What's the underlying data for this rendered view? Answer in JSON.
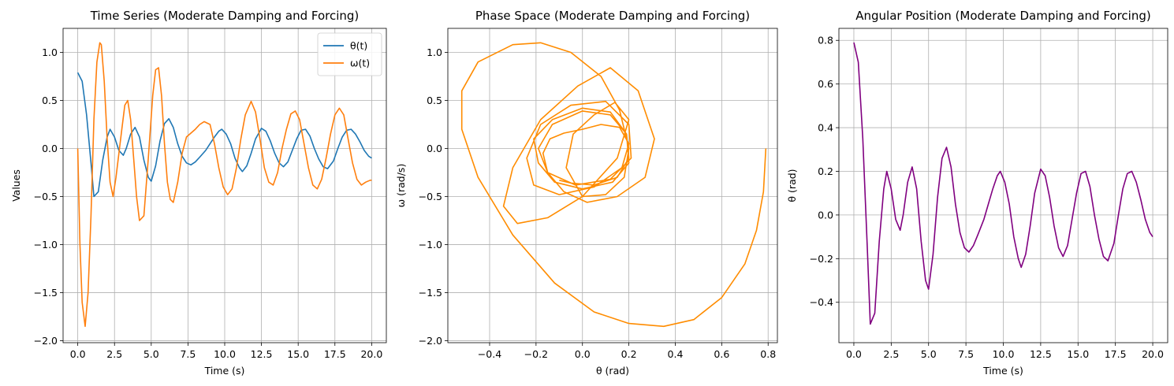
{
  "chart_data": [
    {
      "type": "line",
      "title": "Time Series (Moderate Damping and Forcing)",
      "xlabel": "Time (s)",
      "ylabel": "Values",
      "xlim": [
        -1,
        21
      ],
      "ylim": [
        -2.02,
        1.25
      ],
      "xticks": [
        0,
        2.5,
        5,
        7.5,
        10,
        12.5,
        15,
        17.5,
        20
      ],
      "xtick_labels": [
        "0.0",
        "2.5",
        "5.0",
        "7.5",
        "10.0",
        "12.5",
        "15.0",
        "17.5",
        "20.0"
      ],
      "yticks": [
        -2,
        -1.5,
        -1,
        -0.5,
        0,
        0.5,
        1
      ],
      "ytick_labels": [
        "−2.0",
        "−1.5",
        "−1.0",
        "−0.5",
        "0.0",
        "0.5",
        "1.0"
      ],
      "grid": true,
      "legend": "top-right",
      "series": [
        {
          "name": "θ(t)",
          "color": "#1f77b4",
          "x": [
            0,
            0.3,
            0.6,
            0.9,
            1.1,
            1.4,
            1.7,
            2.0,
            2.2,
            2.5,
            2.8,
            3.1,
            3.3,
            3.6,
            3.9,
            4.2,
            4.5,
            4.8,
            5.0,
            5.3,
            5.6,
            5.9,
            6.2,
            6.5,
            6.8,
            7.1,
            7.4,
            7.7,
            8.0,
            8.3,
            8.7,
            9.0,
            9.3,
            9.6,
            9.8,
            10.1,
            10.4,
            10.7,
            11.0,
            11.2,
            11.5,
            11.8,
            12.1,
            12.5,
            12.8,
            13.1,
            13.4,
            13.7,
            14.0,
            14.3,
            14.6,
            14.9,
            15.2,
            15.5,
            15.8,
            16.1,
            16.4,
            16.7,
            17.0,
            17.4,
            17.7,
            18.0,
            18.3,
            18.6,
            18.9,
            19.2,
            19.5,
            19.8,
            20.0
          ],
          "y": [
            0.79,
            0.7,
            0.35,
            -0.15,
            -0.5,
            -0.45,
            -0.12,
            0.12,
            0.2,
            0.12,
            -0.02,
            -0.07,
            0.0,
            0.15,
            0.22,
            0.12,
            -0.12,
            -0.3,
            -0.34,
            -0.18,
            0.08,
            0.26,
            0.31,
            0.22,
            0.05,
            -0.08,
            -0.15,
            -0.17,
            -0.14,
            -0.09,
            -0.02,
            0.05,
            0.12,
            0.18,
            0.2,
            0.15,
            0.05,
            -0.1,
            -0.2,
            -0.24,
            -0.18,
            -0.05,
            0.1,
            0.21,
            0.18,
            0.08,
            -0.05,
            -0.15,
            -0.19,
            -0.14,
            -0.02,
            0.1,
            0.19,
            0.2,
            0.13,
            0.0,
            -0.11,
            -0.19,
            -0.21,
            -0.13,
            0.0,
            0.12,
            0.19,
            0.2,
            0.15,
            0.07,
            -0.02,
            -0.08,
            -0.1
          ]
        },
        {
          "name": "ω(t)",
          "color": "#ff7f0e",
          "x": [
            0,
            0.15,
            0.3,
            0.5,
            0.7,
            0.9,
            1.1,
            1.3,
            1.5,
            1.6,
            1.8,
            2.0,
            2.2,
            2.4,
            2.6,
            2.8,
            3.0,
            3.2,
            3.4,
            3.6,
            3.8,
            4.0,
            4.2,
            4.5,
            4.8,
            5.1,
            5.3,
            5.5,
            5.7,
            5.9,
            6.1,
            6.3,
            6.5,
            6.8,
            7.1,
            7.4,
            7.7,
            8.0,
            8.3,
            8.6,
            9.0,
            9.3,
            9.6,
            9.9,
            10.2,
            10.5,
            10.8,
            11.1,
            11.4,
            11.8,
            12.1,
            12.4,
            12.7,
            13.0,
            13.3,
            13.6,
            13.9,
            14.2,
            14.5,
            14.8,
            15.1,
            15.4,
            15.7,
            16.0,
            16.3,
            16.6,
            16.9,
            17.2,
            17.5,
            17.8,
            18.1,
            18.4,
            18.7,
            19.0,
            19.3,
            19.6,
            19.9,
            20.0
          ],
          "y": [
            0.0,
            -1.0,
            -1.6,
            -1.85,
            -1.5,
            -0.7,
            0.3,
            0.9,
            1.1,
            1.08,
            0.7,
            0.1,
            -0.35,
            -0.5,
            -0.3,
            -0.05,
            0.2,
            0.45,
            0.5,
            0.3,
            -0.1,
            -0.5,
            -0.75,
            -0.7,
            -0.1,
            0.55,
            0.82,
            0.84,
            0.55,
            0.05,
            -0.35,
            -0.53,
            -0.56,
            -0.35,
            -0.05,
            0.12,
            0.16,
            0.2,
            0.25,
            0.28,
            0.25,
            0.05,
            -0.2,
            -0.4,
            -0.48,
            -0.42,
            -0.2,
            0.1,
            0.35,
            0.49,
            0.38,
            0.1,
            -0.2,
            -0.35,
            -0.38,
            -0.25,
            0.0,
            0.2,
            0.36,
            0.39,
            0.3,
            0.05,
            -0.2,
            -0.38,
            -0.42,
            -0.32,
            -0.1,
            0.15,
            0.35,
            0.42,
            0.35,
            0.1,
            -0.15,
            -0.32,
            -0.38,
            -0.35,
            -0.33,
            -0.33
          ]
        }
      ]
    },
    {
      "type": "line",
      "title": "Phase Space (Moderate Damping and Forcing)",
      "xlabel": "θ (rad)",
      "ylabel": "ω (rad/s)",
      "xlim": [
        -0.58,
        0.84
      ],
      "ylim": [
        -2.02,
        1.25
      ],
      "xticks": [
        -0.4,
        -0.2,
        0,
        0.2,
        0.4,
        0.6,
        0.8
      ],
      "xtick_labels": [
        "−0.4",
        "−0.2",
        "0.0",
        "0.2",
        "0.4",
        "0.6",
        "0.8"
      ],
      "yticks": [
        -2,
        -1.5,
        -1,
        -0.5,
        0,
        0.5,
        1
      ],
      "ytick_labels": [
        "−2.0",
        "−1.5",
        "−1.0",
        "−0.5",
        "0.0",
        "0.5",
        "1.0"
      ],
      "grid": true,
      "series": [
        {
          "color": "#ff8c00",
          "x": [
            0.79,
            0.78,
            0.75,
            0.7,
            0.6,
            0.48,
            0.35,
            0.2,
            0.05,
            -0.12,
            -0.3,
            -0.45,
            -0.52,
            -0.52,
            -0.45,
            -0.3,
            -0.18,
            -0.05,
            0.08,
            0.16,
            0.2,
            0.18,
            0.1,
            0.0,
            -0.07,
            -0.04,
            0.05,
            0.14,
            0.2,
            0.15,
            0.0,
            -0.15,
            -0.28,
            -0.34,
            -0.3,
            -0.18,
            -0.02,
            0.12,
            0.24,
            0.31,
            0.27,
            0.15,
            0.02,
            -0.08,
            -0.15,
            -0.17,
            -0.14,
            -0.08,
            0.0,
            0.08,
            0.16,
            0.2,
            0.17,
            0.05,
            -0.1,
            -0.21,
            -0.24,
            -0.18,
            -0.05,
            0.1,
            0.2,
            0.21,
            0.12,
            -0.03,
            -0.15,
            -0.19,
            -0.13,
            0.0,
            0.12,
            0.19,
            0.2,
            0.13,
            0.0,
            -0.12,
            -0.19,
            -0.21,
            -0.13,
            0.0,
            0.12,
            0.19,
            0.2,
            0.15,
            0.05,
            -0.05,
            -0.1
          ],
          "y": [
            0.0,
            -0.45,
            -0.85,
            -1.2,
            -1.55,
            -1.78,
            -1.85,
            -1.82,
            -1.7,
            -1.4,
            -0.9,
            -0.3,
            0.2,
            0.6,
            0.9,
            1.08,
            1.1,
            1.0,
            0.75,
            0.4,
            0.0,
            -0.3,
            -0.48,
            -0.5,
            -0.2,
            0.15,
            0.35,
            0.48,
            0.3,
            -0.1,
            -0.5,
            -0.72,
            -0.78,
            -0.6,
            -0.2,
            0.3,
            0.65,
            0.84,
            0.6,
            0.1,
            -0.3,
            -0.5,
            -0.56,
            -0.45,
            -0.25,
            -0.05,
            0.1,
            0.16,
            0.2,
            0.25,
            0.22,
            0.05,
            -0.2,
            -0.4,
            -0.48,
            -0.38,
            -0.1,
            0.25,
            0.45,
            0.49,
            0.25,
            -0.1,
            -0.32,
            -0.38,
            -0.25,
            0.0,
            0.25,
            0.39,
            0.35,
            0.15,
            -0.15,
            -0.35,
            -0.42,
            -0.35,
            -0.15,
            0.1,
            0.3,
            0.42,
            0.38,
            0.15,
            -0.1,
            -0.3,
            -0.38,
            -0.36,
            -0.33
          ]
        }
      ]
    },
    {
      "type": "line",
      "title": "Angular Position (Moderate Damping and Forcing)",
      "xlabel": "Time (s)",
      "ylabel": "θ (rad)",
      "xlim": [
        -1,
        21
      ],
      "ylim": [
        -0.585,
        0.855
      ],
      "xticks": [
        0,
        2.5,
        5,
        7.5,
        10,
        12.5,
        15,
        17.5,
        20
      ],
      "xtick_labels": [
        "0.0",
        "2.5",
        "5.0",
        "7.5",
        "10.0",
        "12.5",
        "15.0",
        "17.5",
        "20.0"
      ],
      "yticks": [
        -0.4,
        -0.2,
        0,
        0.2,
        0.4,
        0.6,
        0.8
      ],
      "ytick_labels": [
        "−0.4",
        "−0.2",
        "0.0",
        "0.2",
        "0.4",
        "0.6",
        "0.8"
      ],
      "grid": true,
      "series": [
        {
          "color": "#800080",
          "x": [
            0,
            0.3,
            0.6,
            0.9,
            1.1,
            1.4,
            1.7,
            2.0,
            2.2,
            2.5,
            2.8,
            3.1,
            3.3,
            3.6,
            3.9,
            4.2,
            4.5,
            4.8,
            5.0,
            5.3,
            5.6,
            5.9,
            6.2,
            6.5,
            6.8,
            7.1,
            7.4,
            7.7,
            8.0,
            8.3,
            8.7,
            9.0,
            9.3,
            9.6,
            9.8,
            10.1,
            10.4,
            10.7,
            11.0,
            11.2,
            11.5,
            11.8,
            12.1,
            12.5,
            12.8,
            13.1,
            13.4,
            13.7,
            14.0,
            14.3,
            14.6,
            14.9,
            15.2,
            15.5,
            15.8,
            16.1,
            16.4,
            16.7,
            17.0,
            17.4,
            17.7,
            18.0,
            18.3,
            18.6,
            18.9,
            19.2,
            19.5,
            19.8,
            20.0
          ],
          "y": [
            0.79,
            0.7,
            0.35,
            -0.15,
            -0.5,
            -0.45,
            -0.12,
            0.12,
            0.2,
            0.12,
            -0.02,
            -0.07,
            0.0,
            0.15,
            0.22,
            0.12,
            -0.12,
            -0.3,
            -0.34,
            -0.18,
            0.08,
            0.26,
            0.31,
            0.22,
            0.05,
            -0.08,
            -0.15,
            -0.17,
            -0.14,
            -0.09,
            -0.02,
            0.05,
            0.12,
            0.18,
            0.2,
            0.15,
            0.05,
            -0.1,
            -0.2,
            -0.24,
            -0.18,
            -0.05,
            0.1,
            0.21,
            0.18,
            0.08,
            -0.05,
            -0.15,
            -0.19,
            -0.14,
            -0.02,
            0.1,
            0.19,
            0.2,
            0.13,
            0.0,
            -0.11,
            -0.19,
            -0.21,
            -0.13,
            0.0,
            0.12,
            0.19,
            0.2,
            0.15,
            0.07,
            -0.02,
            -0.08,
            -0.1
          ]
        }
      ]
    }
  ]
}
